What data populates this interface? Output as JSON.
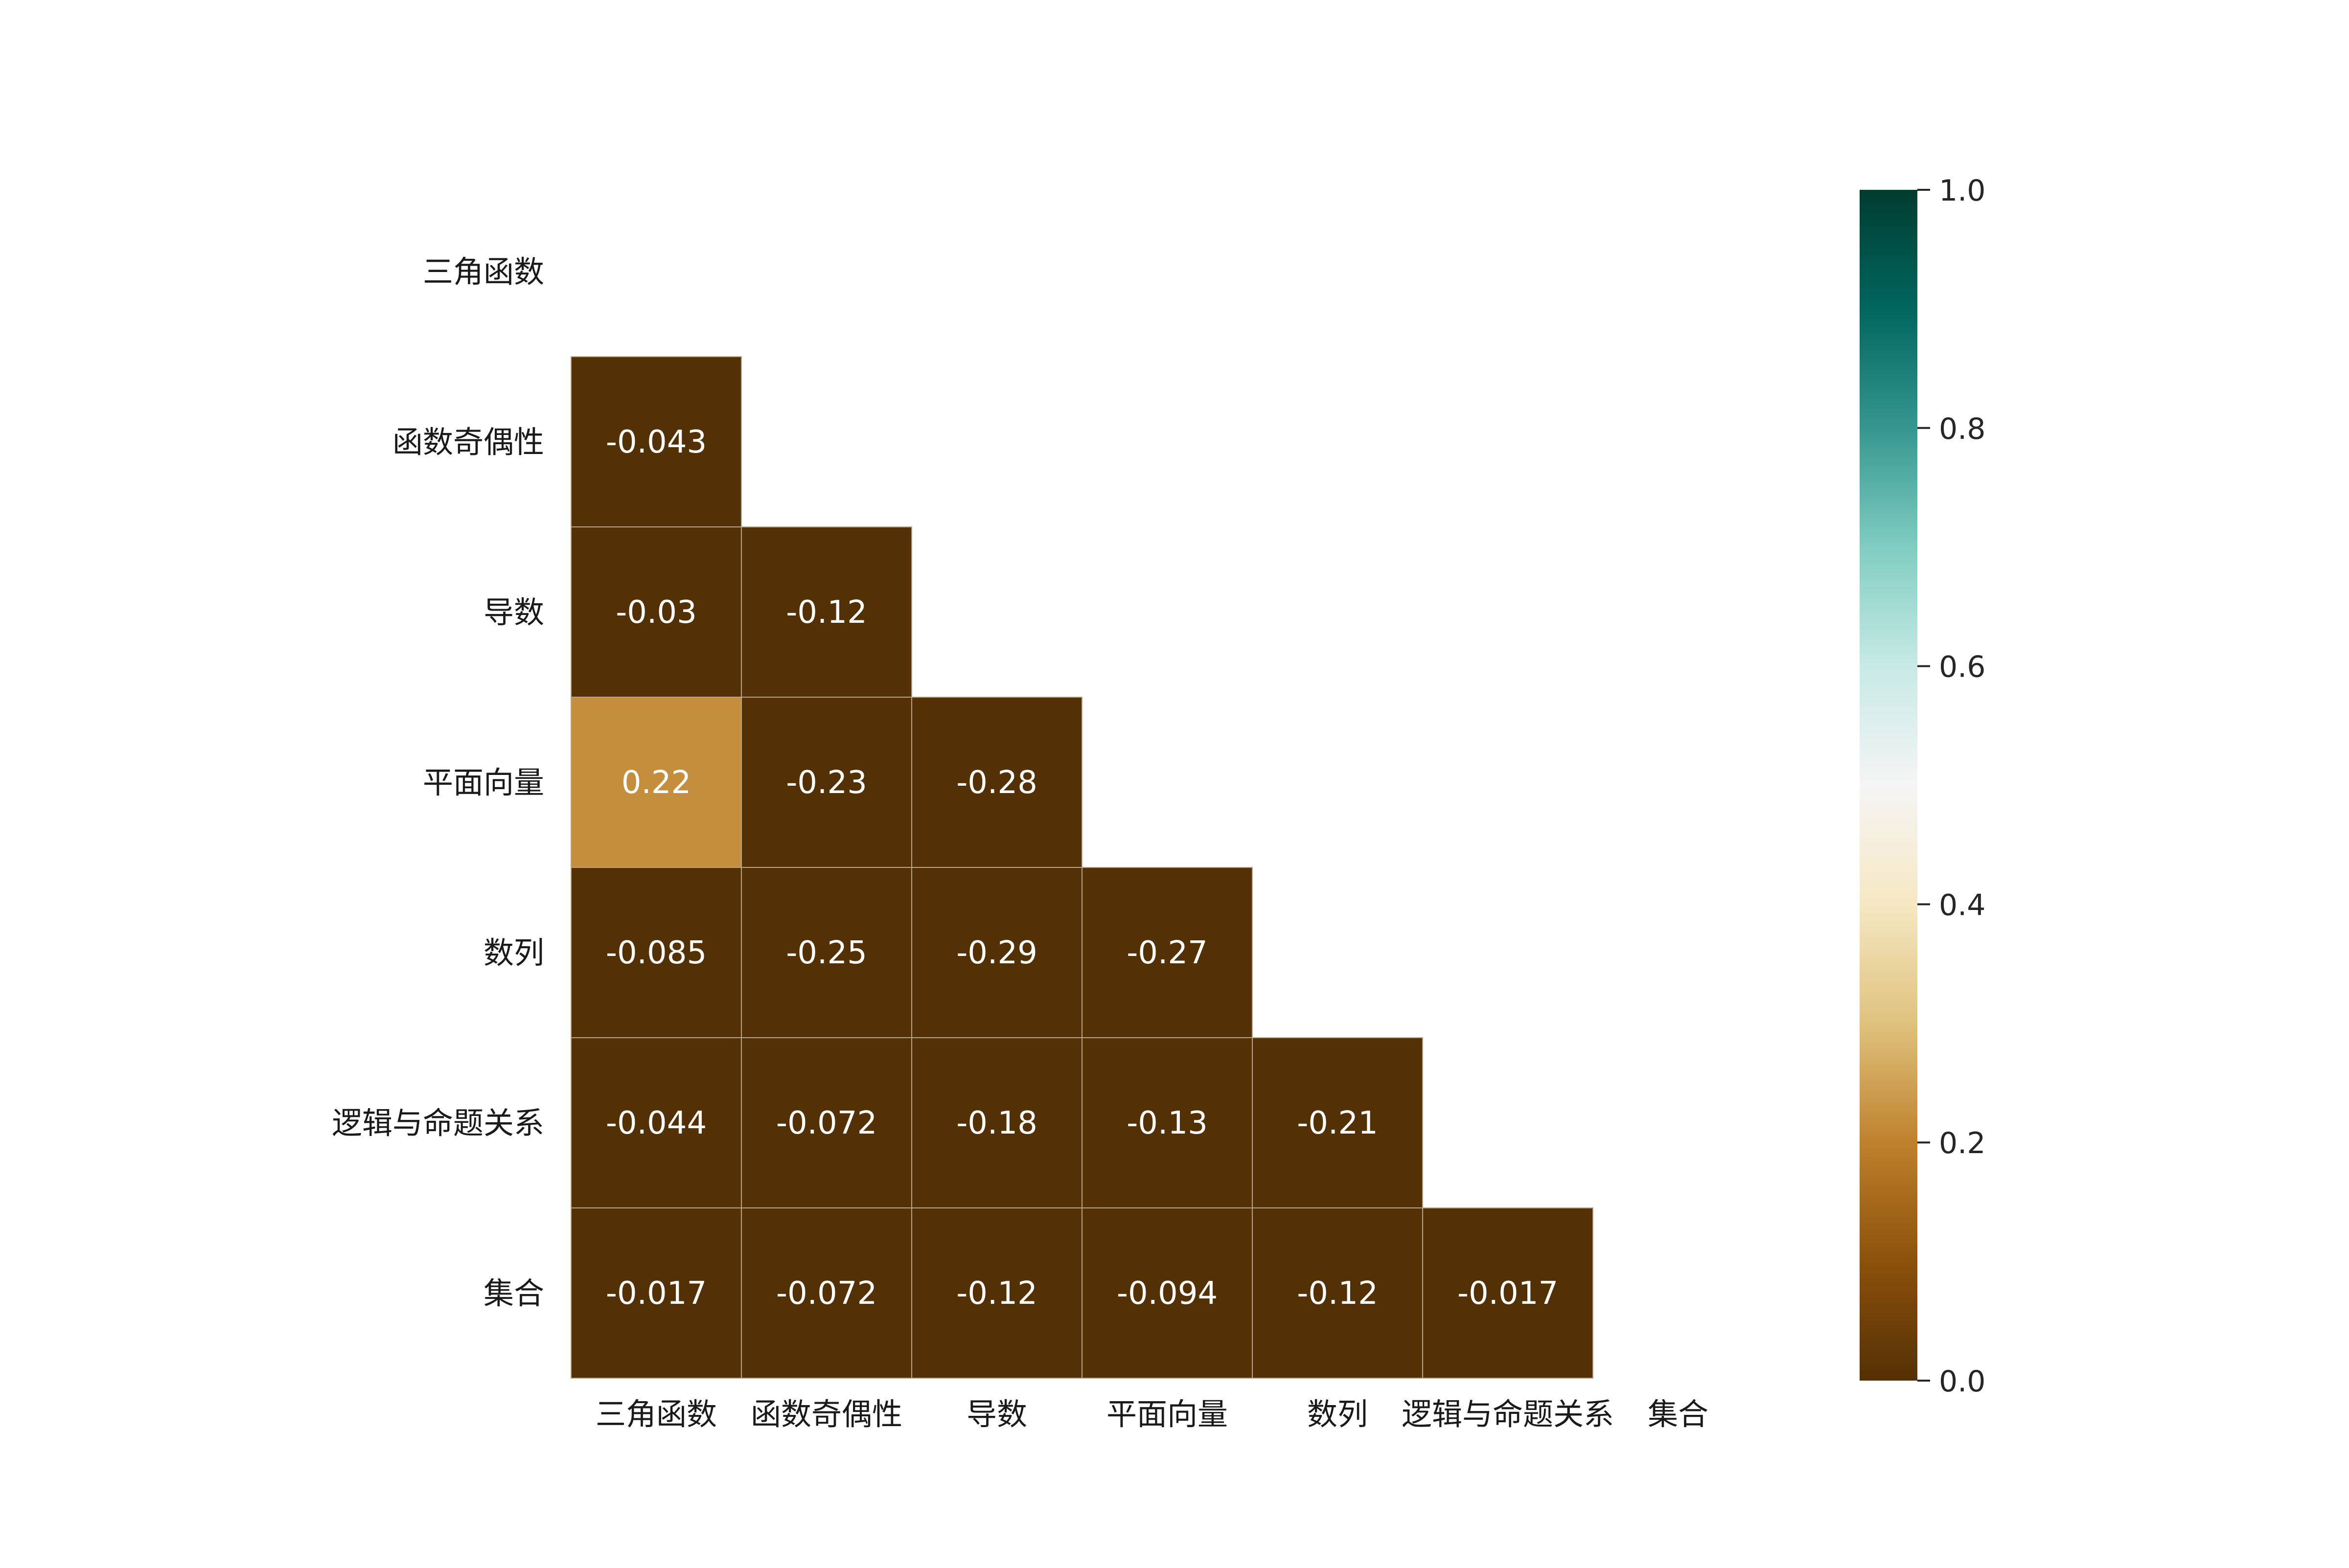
{
  "chart_data": {
    "type": "heatmap",
    "title": "",
    "xlabel": "",
    "ylabel": "",
    "mask": "upper-triangle-including-diagonal",
    "rows": [
      "三角函数",
      "函数奇偶性",
      "导数",
      "平面向量",
      "数列",
      "逻辑与命题关系",
      "集合"
    ],
    "columns": [
      "三角函数",
      "函数奇偶性",
      "导数",
      "平面向量",
      "数列",
      "逻辑与命题关系",
      "集合"
    ],
    "values": [
      [
        null,
        null,
        null,
        null,
        null,
        null,
        null
      ],
      [
        -0.043,
        null,
        null,
        null,
        null,
        null,
        null
      ],
      [
        -0.03,
        -0.12,
        null,
        null,
        null,
        null,
        null
      ],
      [
        0.22,
        -0.23,
        -0.28,
        null,
        null,
        null,
        null
      ],
      [
        -0.085,
        -0.25,
        -0.29,
        -0.27,
        null,
        null,
        null
      ],
      [
        -0.044,
        -0.072,
        -0.18,
        -0.13,
        -0.21,
        null,
        null
      ],
      [
        -0.017,
        -0.072,
        -0.12,
        -0.094,
        -0.12,
        -0.017,
        null
      ]
    ],
    "value_labels": [
      [
        null,
        null,
        null,
        null,
        null,
        null,
        null
      ],
      [
        "-0.043",
        null,
        null,
        null,
        null,
        null,
        null
      ],
      [
        "-0.03",
        "-0.12",
        null,
        null,
        null,
        null,
        null
      ],
      [
        "0.22",
        "-0.23",
        "-0.28",
        null,
        null,
        null,
        null
      ],
      [
        "-0.085",
        "-0.25",
        "-0.29",
        "-0.27",
        null,
        null,
        null
      ],
      [
        "-0.044",
        "-0.072",
        "-0.18",
        "-0.13",
        "-0.21",
        null,
        null
      ],
      [
        "-0.017",
        "-0.072",
        "-0.12",
        "-0.094",
        "-0.12",
        "-0.017",
        null
      ]
    ],
    "colorbar": {
      "range": [
        0.0,
        1.0
      ],
      "ticks": [
        0.0,
        0.2,
        0.4,
        0.6,
        0.8,
        1.0
      ],
      "tick_labels": [
        "0.0",
        "0.2",
        "0.4",
        "0.6",
        "0.8",
        "1.0"
      ],
      "colormap": "BrBG",
      "colors": [
        "#543005",
        "#8c510a",
        "#bf812d",
        "#dfc27d",
        "#f6e8c3",
        "#f5f5f5",
        "#c7eae5",
        "#80cdc1",
        "#35978f",
        "#01665e",
        "#003c30"
      ]
    },
    "cell_border_color": "#b8a58c"
  }
}
